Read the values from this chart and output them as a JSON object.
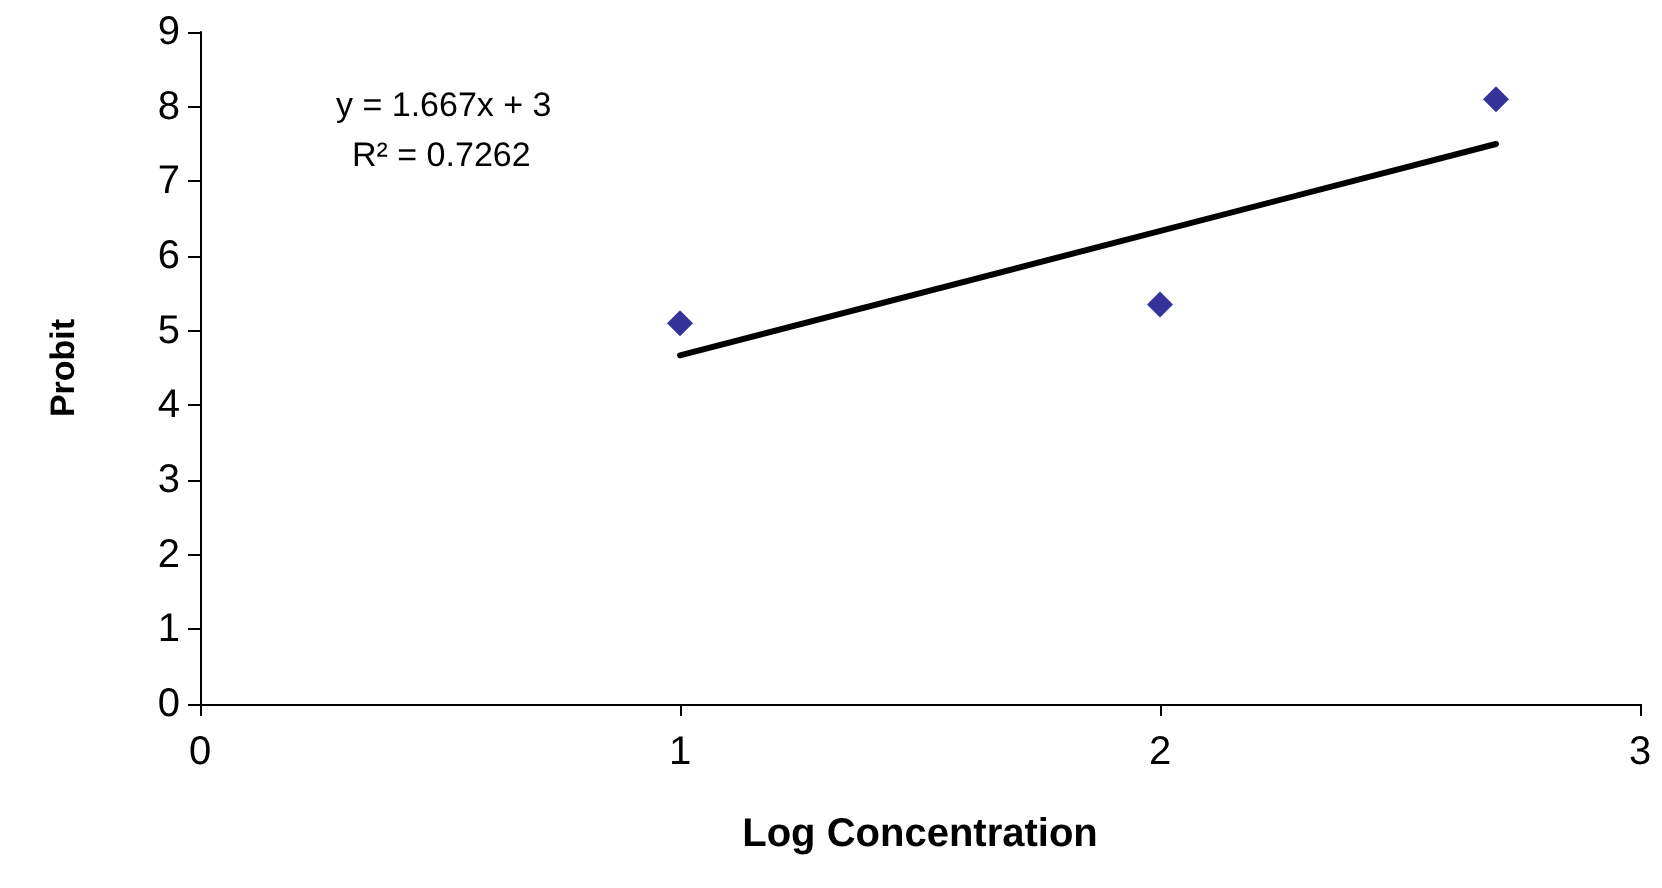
{
  "chart_data": {
    "type": "scatter",
    "xlabel": "Log Concentration",
    "ylabel": "Probit",
    "xlim": [
      0,
      3
    ],
    "xticks": [
      0,
      1,
      2,
      3
    ],
    "ylim": [
      0,
      9
    ],
    "yticks": [
      0,
      1,
      2,
      3,
      4,
      5,
      6,
      7,
      8,
      9
    ],
    "grid": false,
    "marker": "diamond",
    "annotations": [
      "y = 1.667x + 3",
      "R² = 0.7262"
    ],
    "series": [
      {
        "color": "#000080",
        "x": [
          1,
          2,
          2.7
        ],
        "values": [
          5.1,
          5.35,
          8.1
        ]
      },
      {
        "type": "line",
        "color": "#000000",
        "marker": "none",
        "line_style": "solid",
        "x": [
          1,
          2.7
        ],
        "values": [
          4.67,
          7.5
        ]
      }
    ]
  }
}
